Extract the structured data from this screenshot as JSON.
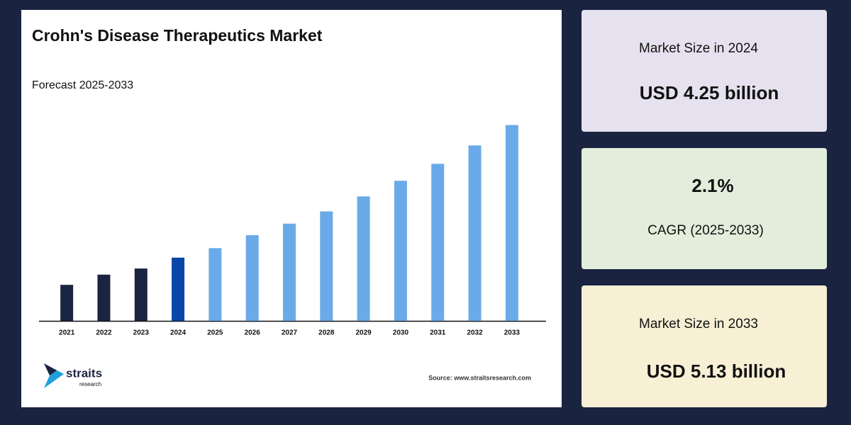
{
  "chart_data": {
    "type": "bar",
    "title": "Crohn's Disease Therapeutics Market",
    "subtitle": "Forecast 2025-2033",
    "categories": [
      "2021",
      "2022",
      "2023",
      "2024",
      "2025",
      "2026",
      "2027",
      "2028",
      "2029",
      "2030",
      "2031",
      "2032",
      "2033"
    ],
    "values": [
      53,
      68,
      77,
      93,
      107,
      126,
      143,
      161,
      183,
      206,
      231,
      258,
      288
    ],
    "colors": [
      "#1b2542",
      "#1b2542",
      "#1b2542",
      "#0a45a8",
      "#6aaae8",
      "#6aaae8",
      "#6aaae8",
      "#6aaae8",
      "#6aaae8",
      "#6aaae8",
      "#6aaae8",
      "#6aaae8",
      "#6aaae8"
    ],
    "ylim": [
      0,
      300
    ]
  },
  "logo": {
    "name": "straits",
    "tagline": "research"
  },
  "source": "Source: www.straitsresearch.com",
  "cards": [
    {
      "label": "Market Size in 2024",
      "value": "USD 4.25 billion"
    },
    {
      "value": "2.1%",
      "label": "CAGR (2025-2033)"
    },
    {
      "label": "Market Size in 2033",
      "value": "USD 5.13 billion"
    }
  ]
}
